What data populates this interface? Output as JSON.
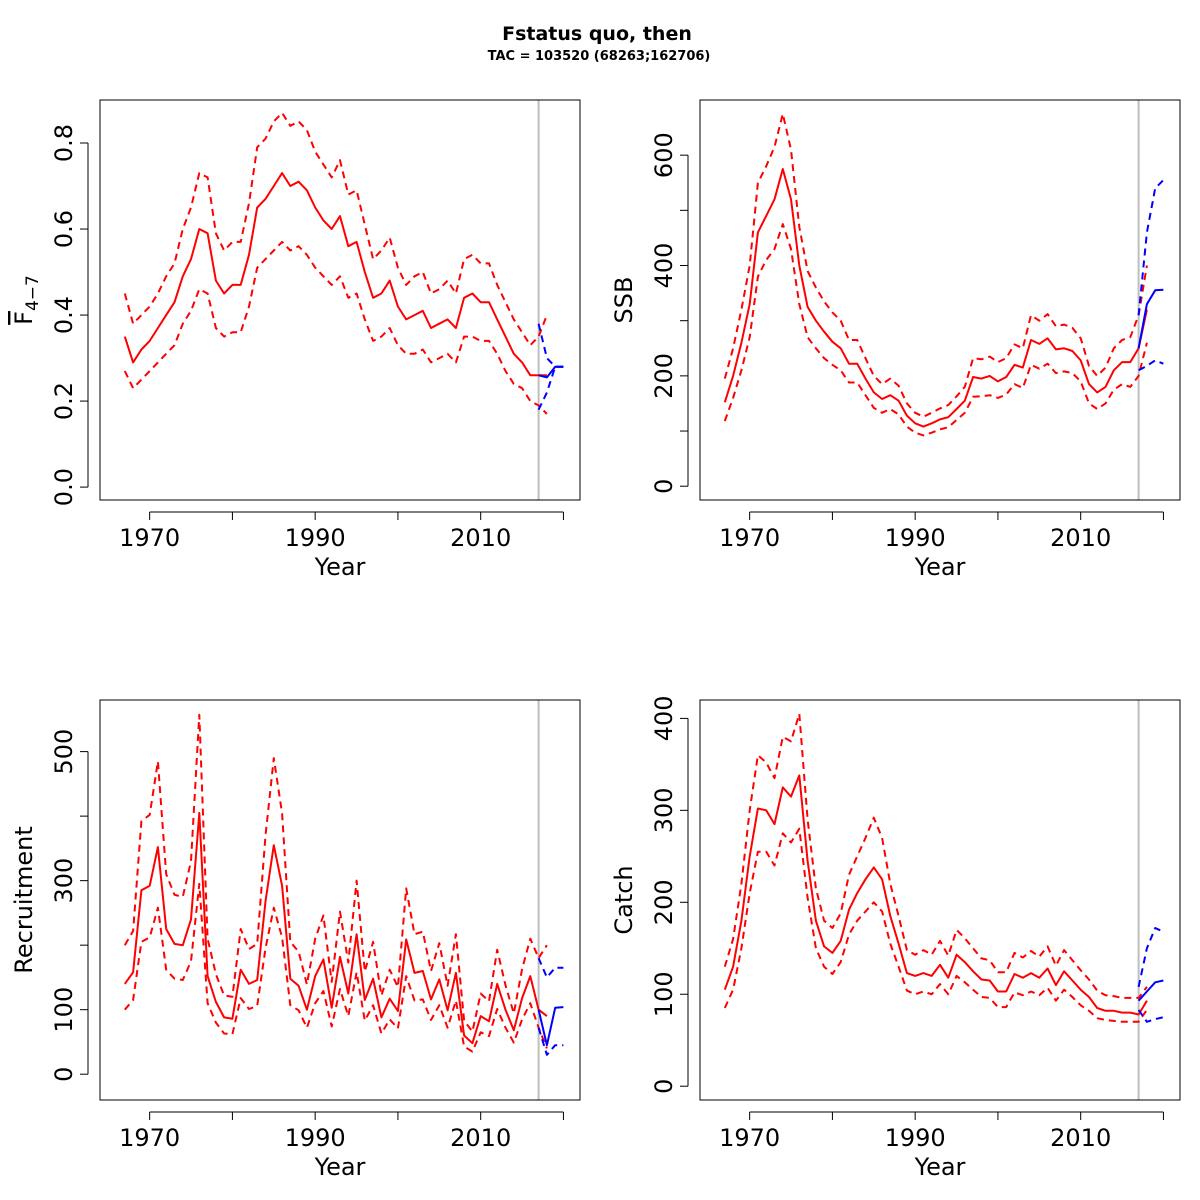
{
  "figure": {
    "title": "Fstatus quo, then",
    "subtitle": "TAC = 103520 (68263;162706)"
  },
  "colors": {
    "historical": "#ff0000",
    "forecast": "#0000ff",
    "separator": "#bebebe",
    "axis": "#000000"
  },
  "chart_data": [
    {
      "type": "line",
      "id": "fbar",
      "title": "",
      "xlabel": "Year",
      "ylabel": "F",
      "ylabel_sub": "4−7",
      "xlim": [
        1964,
        2022
      ],
      "ylim": [
        -0.03,
        0.9
      ],
      "xticks": [
        1970,
        1980,
        1990,
        2000,
        2010,
        2020
      ],
      "xtick_labels": [
        "1970",
        "",
        "1990",
        "",
        "2010",
        ""
      ],
      "yticks": [
        0,
        0.2,
        0.4,
        0.6,
        0.8
      ],
      "ytick_labels": [
        "0.0",
        "0.2",
        "0.4",
        "0.6",
        "0.8"
      ],
      "separator_x": 2017,
      "historical": {
        "x": [
          1967,
          1968,
          1969,
          1970,
          1971,
          1972,
          1973,
          1974,
          1975,
          1976,
          1977,
          1978,
          1979,
          1980,
          1981,
          1982,
          1983,
          1984,
          1985,
          1986,
          1987,
          1988,
          1989,
          1990,
          1991,
          1992,
          1993,
          1994,
          1995,
          1996,
          1997,
          1998,
          1999,
          2000,
          2001,
          2002,
          2003,
          2004,
          2005,
          2006,
          2007,
          2008,
          2009,
          2010,
          2011,
          2012,
          2013,
          2014,
          2015,
          2016,
          2017,
          2018
        ],
        "mean": [
          0.35,
          0.29,
          0.32,
          0.34,
          0.37,
          0.4,
          0.43,
          0.49,
          0.53,
          0.6,
          0.59,
          0.48,
          0.45,
          0.47,
          0.47,
          0.54,
          0.65,
          0.67,
          0.7,
          0.73,
          0.7,
          0.71,
          0.69,
          0.65,
          0.62,
          0.6,
          0.63,
          0.56,
          0.57,
          0.5,
          0.44,
          0.45,
          0.48,
          0.42,
          0.39,
          0.4,
          0.41,
          0.37,
          0.38,
          0.39,
          0.37,
          0.44,
          0.45,
          0.43,
          0.43,
          0.39,
          0.35,
          0.31,
          0.29,
          0.26,
          0.26,
          0.26
        ],
        "lower": [
          0.27,
          0.23,
          0.25,
          0.27,
          0.29,
          0.31,
          0.33,
          0.38,
          0.41,
          0.46,
          0.45,
          0.37,
          0.35,
          0.36,
          0.36,
          0.42,
          0.51,
          0.53,
          0.55,
          0.57,
          0.55,
          0.56,
          0.54,
          0.51,
          0.49,
          0.47,
          0.49,
          0.44,
          0.45,
          0.39,
          0.34,
          0.35,
          0.37,
          0.33,
          0.31,
          0.31,
          0.32,
          0.29,
          0.3,
          0.31,
          0.29,
          0.35,
          0.35,
          0.34,
          0.34,
          0.31,
          0.27,
          0.24,
          0.23,
          0.2,
          0.19,
          0.17
        ],
        "upper": [
          0.45,
          0.38,
          0.4,
          0.42,
          0.45,
          0.49,
          0.52,
          0.6,
          0.65,
          0.73,
          0.72,
          0.59,
          0.55,
          0.57,
          0.57,
          0.66,
          0.79,
          0.81,
          0.85,
          0.87,
          0.84,
          0.85,
          0.83,
          0.78,
          0.75,
          0.72,
          0.76,
          0.68,
          0.69,
          0.61,
          0.53,
          0.55,
          0.58,
          0.51,
          0.47,
          0.49,
          0.5,
          0.45,
          0.46,
          0.48,
          0.45,
          0.53,
          0.54,
          0.52,
          0.52,
          0.47,
          0.43,
          0.39,
          0.36,
          0.33,
          0.35,
          0.4
        ]
      },
      "forecast": {
        "x": [
          2017,
          2018,
          2019,
          2020
        ],
        "mean": [
          0.26,
          0.255,
          0.28,
          0.28
        ],
        "lower": [
          0.18,
          0.22,
          0.28,
          0.28
        ],
        "upper": [
          0.38,
          0.3,
          0.28,
          0.28
        ]
      }
    },
    {
      "type": "line",
      "id": "ssb",
      "title": "",
      "xlabel": "Year",
      "ylabel": "SSB",
      "xlim": [
        1964,
        2022
      ],
      "ylim": [
        -25,
        700
      ],
      "xticks": [
        1970,
        1980,
        1990,
        2000,
        2010,
        2020
      ],
      "xtick_labels": [
        "1970",
        "",
        "1990",
        "",
        "2010",
        ""
      ],
      "yticks": [
        0,
        100,
        200,
        300,
        400,
        500,
        600
      ],
      "ytick_labels": [
        "0",
        "",
        "200",
        "",
        "400",
        "",
        "600"
      ],
      "separator_x": 2017,
      "historical": {
        "x": [
          1967,
          1968,
          1969,
          1970,
          1971,
          1972,
          1973,
          1974,
          1975,
          1976,
          1977,
          1978,
          1979,
          1980,
          1981,
          1982,
          1983,
          1984,
          1985,
          1986,
          1987,
          1988,
          1989,
          1990,
          1991,
          1992,
          1993,
          1994,
          1995,
          1996,
          1997,
          1998,
          1999,
          2000,
          2001,
          2002,
          2003,
          2004,
          2005,
          2006,
          2007,
          2008,
          2009,
          2010,
          2011,
          2012,
          2013,
          2014,
          2015,
          2016,
          2017,
          2018
        ],
        "mean": [
          152,
          200,
          260,
          330,
          460,
          490,
          520,
          575,
          520,
          400,
          325,
          300,
          280,
          262,
          250,
          222,
          222,
          195,
          170,
          158,
          165,
          155,
          128,
          114,
          108,
          114,
          121,
          125,
          140,
          155,
          198,
          195,
          200,
          190,
          198,
          220,
          215,
          265,
          258,
          268,
          248,
          250,
          245,
          228,
          185,
          170,
          180,
          210,
          225,
          225,
          250,
          320
        ],
        "lower": [
          118,
          160,
          210,
          270,
          380,
          410,
          430,
          475,
          430,
          330,
          270,
          250,
          232,
          220,
          210,
          188,
          188,
          165,
          142,
          133,
          140,
          130,
          108,
          97,
          92,
          97,
          103,
          107,
          120,
          133,
          162,
          163,
          165,
          160,
          166,
          185,
          178,
          220,
          213,
          222,
          205,
          208,
          205,
          190,
          150,
          140,
          150,
          175,
          185,
          180,
          200,
          260
        ],
        "upper": [
          195,
          250,
          320,
          400,
          550,
          580,
          615,
          675,
          610,
          470,
          390,
          360,
          335,
          315,
          300,
          265,
          265,
          232,
          200,
          185,
          195,
          182,
          150,
          133,
          126,
          133,
          141,
          147,
          163,
          180,
          232,
          230,
          235,
          225,
          232,
          257,
          250,
          310,
          300,
          312,
          290,
          293,
          287,
          268,
          218,
          200,
          215,
          250,
          265,
          270,
          310,
          400
        ]
      },
      "forecast": {
        "x": [
          2017,
          2018,
          2019,
          2020
        ],
        "mean": [
          250,
          330,
          355,
          356
        ],
        "lower": [
          210,
          218,
          228,
          222
        ],
        "upper": [
          310,
          460,
          540,
          555
        ]
      }
    },
    {
      "type": "line",
      "id": "recruitment",
      "title": "",
      "xlabel": "Year",
      "ylabel": "Recruitment",
      "xlim": [
        1964,
        2022
      ],
      "ylim": [
        -40,
        580
      ],
      "xticks": [
        1970,
        1980,
        1990,
        2000,
        2010,
        2020
      ],
      "xtick_labels": [
        "1970",
        "",
        "1990",
        "",
        "2010",
        ""
      ],
      "yticks": [
        0,
        100,
        200,
        300,
        400,
        500
      ],
      "ytick_labels": [
        "0",
        "100",
        "",
        "300",
        "",
        "500"
      ],
      "separator_x": 2017,
      "historical": {
        "x": [
          1967,
          1968,
          1969,
          1970,
          1971,
          1972,
          1973,
          1974,
          1975,
          1976,
          1977,
          1978,
          1979,
          1980,
          1981,
          1982,
          1983,
          1984,
          1985,
          1986,
          1987,
          1988,
          1989,
          1990,
          1991,
          1992,
          1993,
          1994,
          1995,
          1996,
          1997,
          1998,
          1999,
          2000,
          2001,
          2002,
          2003,
          2004,
          2005,
          2006,
          2007,
          2008,
          2009,
          2010,
          2011,
          2012,
          2013,
          2014,
          2015,
          2016,
          2017,
          2018
        ],
        "mean": [
          140,
          158,
          285,
          292,
          352,
          225,
          202,
          200,
          240,
          405,
          152,
          112,
          88,
          86,
          162,
          140,
          146,
          268,
          355,
          292,
          148,
          137,
          100,
          152,
          178,
          103,
          182,
          125,
          217,
          115,
          148,
          88,
          117,
          98,
          209,
          157,
          160,
          116,
          147,
          99,
          157,
          60,
          48,
          90,
          82,
          140,
          100,
          68,
          118,
          152,
          100,
          90
        ],
        "lower": [
          100,
          115,
          205,
          212,
          258,
          162,
          148,
          146,
          175,
          295,
          110,
          80,
          63,
          62,
          118,
          101,
          106,
          195,
          258,
          212,
          107,
          99,
          72,
          110,
          129,
          74,
          132,
          90,
          158,
          83,
          107,
          63,
          85,
          71,
          152,
          114,
          116,
          84,
          107,
          72,
          114,
          43,
          35,
          65,
          59,
          101,
          72,
          49,
          85,
          110,
          72,
          40
        ],
        "upper": [
          200,
          222,
          392,
          402,
          485,
          310,
          278,
          275,
          330,
          557,
          210,
          155,
          122,
          120,
          225,
          194,
          202,
          370,
          490,
          404,
          205,
          190,
          139,
          210,
          246,
          143,
          252,
          173,
          300,
          159,
          205,
          122,
          162,
          135,
          288,
          217,
          221,
          160,
          203,
          137,
          217,
          83,
          66,
          125,
          113,
          193,
          138,
          94,
          163,
          210,
          180,
          200
        ]
      },
      "forecast": {
        "x": [
          2017,
          2018,
          2019,
          2020
        ],
        "mean": [
          100,
          45,
          103,
          104
        ],
        "lower": [
          72,
          30,
          45,
          45
        ],
        "upper": [
          180,
          150,
          165,
          165
        ]
      }
    },
    {
      "type": "line",
      "id": "catch",
      "title": "",
      "xlabel": "Year",
      "ylabel": "Catch",
      "xlim": [
        1964,
        2022
      ],
      "ylim": [
        -15,
        420
      ],
      "xticks": [
        1970,
        1980,
        1990,
        2000,
        2010,
        2020
      ],
      "xtick_labels": [
        "1970",
        "",
        "1990",
        "",
        "2010",
        ""
      ],
      "yticks": [
        0,
        100,
        200,
        300,
        400
      ],
      "ytick_labels": [
        "0",
        "100",
        "200",
        "300",
        "400"
      ],
      "separator_x": 2017,
      "historical": {
        "x": [
          1967,
          1968,
          1969,
          1970,
          1971,
          1972,
          1973,
          1974,
          1975,
          1976,
          1977,
          1978,
          1979,
          1980,
          1981,
          1982,
          1983,
          1984,
          1985,
          1986,
          1987,
          1988,
          1989,
          1990,
          1991,
          1992,
          1993,
          1994,
          1995,
          1996,
          1997,
          1998,
          1999,
          2000,
          2001,
          2002,
          2003,
          2004,
          2005,
          2006,
          2007,
          2008,
          2009,
          2010,
          2011,
          2012,
          2013,
          2014,
          2015,
          2016,
          2017,
          2018
        ],
        "mean": [
          105,
          130,
          180,
          250,
          302,
          300,
          285,
          325,
          315,
          338,
          245,
          180,
          152,
          145,
          158,
          192,
          210,
          225,
          238,
          225,
          185,
          155,
          123,
          120,
          123,
          120,
          132,
          118,
          143,
          135,
          125,
          116,
          115,
          103,
          103,
          122,
          118,
          123,
          118,
          128,
          110,
          125,
          115,
          105,
          97,
          85,
          82,
          82,
          80,
          80,
          78,
          93
        ],
        "lower": [
          85,
          105,
          150,
          210,
          255,
          255,
          240,
          275,
          265,
          280,
          205,
          150,
          130,
          122,
          135,
          165,
          180,
          190,
          200,
          190,
          155,
          130,
          104,
          100,
          103,
          100,
          111,
          100,
          120,
          113,
          105,
          97,
          96,
          86,
          86,
          102,
          99,
          103,
          99,
          107,
          93,
          105,
          97,
          88,
          82,
          74,
          72,
          71,
          70,
          70,
          70,
          83
        ],
        "upper": [
          130,
          160,
          220,
          300,
          360,
          352,
          335,
          380,
          375,
          405,
          290,
          215,
          180,
          172,
          188,
          230,
          250,
          270,
          292,
          270,
          220,
          185,
          148,
          143,
          148,
          143,
          158,
          142,
          170,
          161,
          150,
          139,
          137,
          124,
          124,
          145,
          140,
          147,
          141,
          152,
          131,
          148,
          137,
          126,
          116,
          104,
          99,
          98,
          96,
          96,
          96,
          108
        ]
      },
      "forecast": {
        "x": [
          2017,
          2018,
          2019,
          2020
        ],
        "mean": [
          93,
          103,
          113,
          115
        ],
        "lower": [
          83,
          70,
          73,
          75
        ],
        "upper": [
          108,
          150,
          172,
          168
        ]
      }
    }
  ]
}
